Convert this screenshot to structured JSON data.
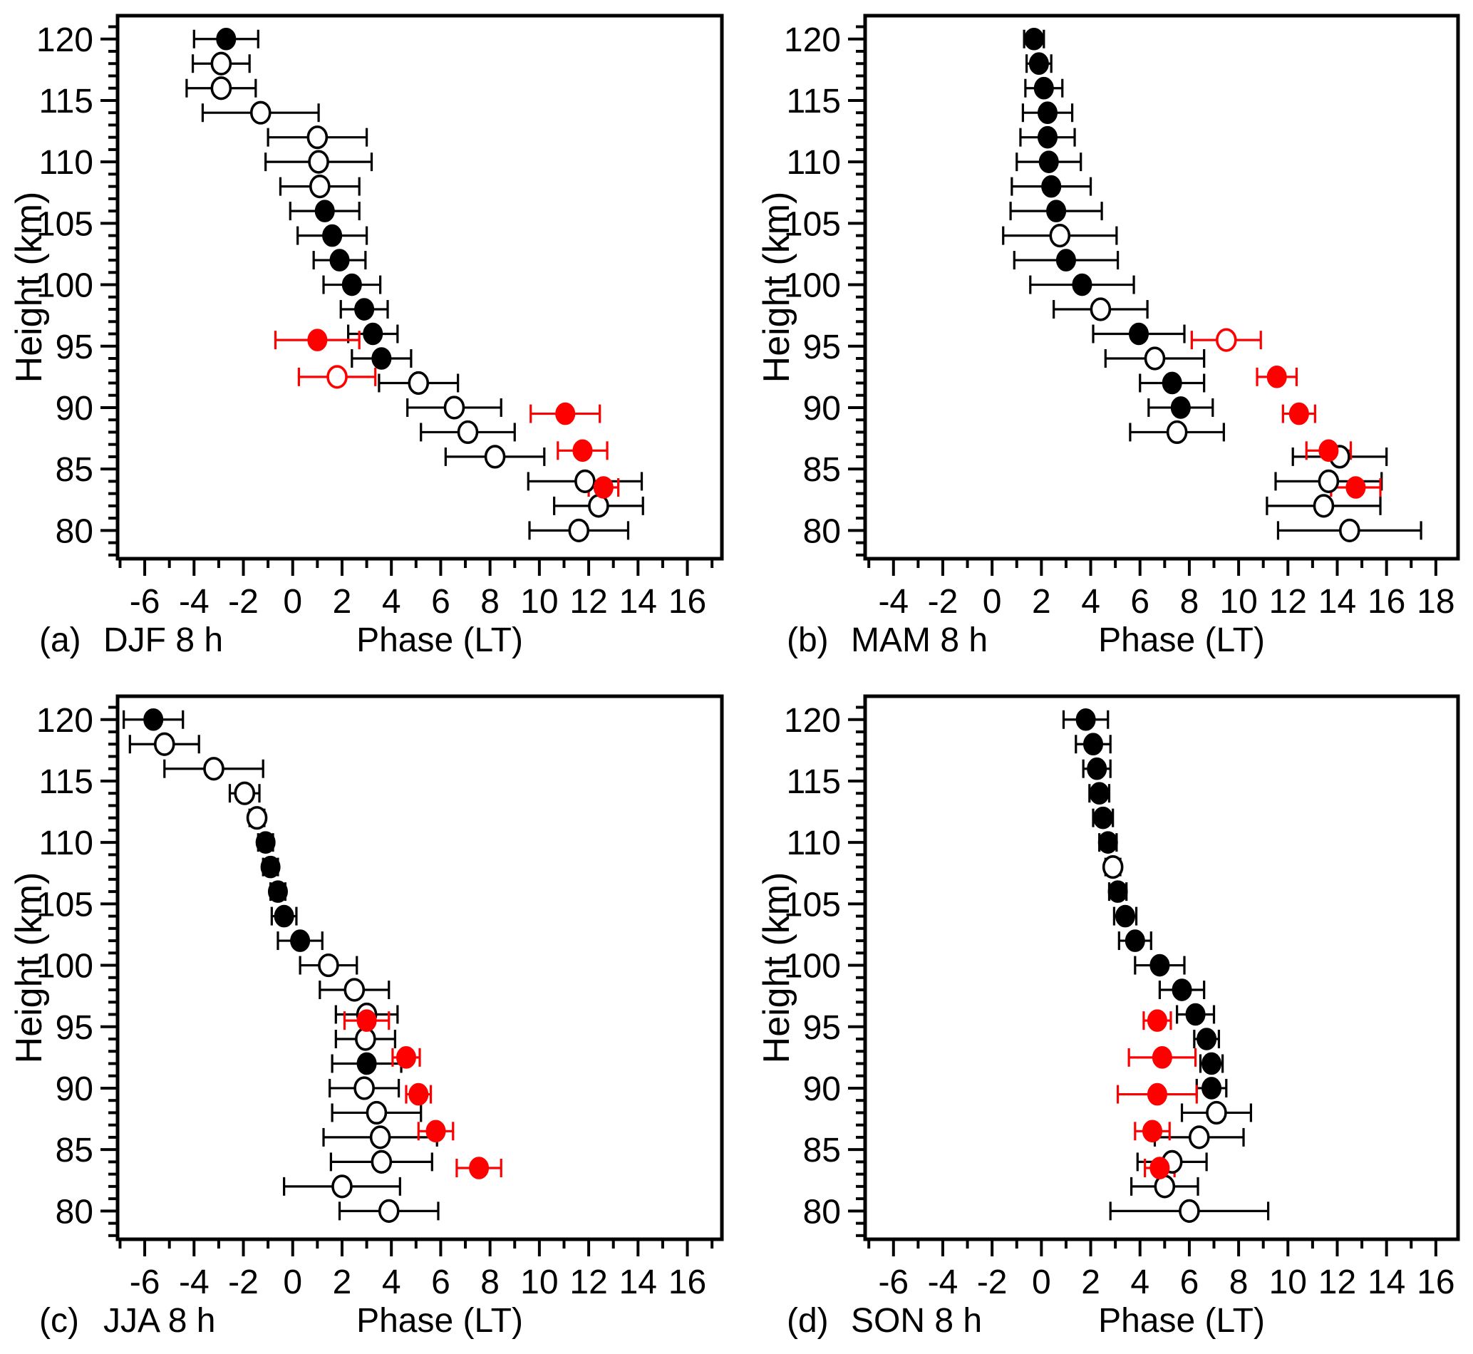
{
  "figure": {
    "background": "#ffffff",
    "ylabel": "Height (km)",
    "xlabel": "Phase (LT)",
    "series_colors": {
      "black": "#000000",
      "red": "#ff0000"
    }
  },
  "chart_data": [
    {
      "type": "scatter",
      "panel_label": "(a)",
      "season_label": "DJF 8 h",
      "xlabel": "Phase (LT)",
      "ylabel": "Height (km)",
      "x_range": [
        -7.1,
        17.4
      ],
      "x_major_ticks": [
        -6,
        -4,
        -2,
        0,
        2,
        4,
        6,
        8,
        10,
        12,
        14,
        16
      ],
      "x_minor_step": 1,
      "y_range": [
        77.7,
        121.9
      ],
      "y_major_ticks": [
        80,
        85,
        90,
        95,
        100,
        105,
        110,
        115,
        120
      ],
      "y_minor_step": 1,
      "grid": "off",
      "legend": "none",
      "series": [
        {
          "name": "black-phase",
          "color": "#000000",
          "columns": [
            "height_km",
            "phase_lt",
            "error_lt",
            "marker"
          ],
          "points": [
            [
              120,
              -2.7,
              1.3,
              "filled"
            ],
            [
              118,
              -2.9,
              1.15,
              "open"
            ],
            [
              116,
              -2.9,
              1.4,
              "open"
            ],
            [
              114,
              -1.3,
              2.35,
              "open"
            ],
            [
              112,
              1.0,
              2.0,
              "open"
            ],
            [
              110,
              1.05,
              2.15,
              "open"
            ],
            [
              108,
              1.1,
              1.6,
              "open"
            ],
            [
              106,
              1.3,
              1.4,
              "filled"
            ],
            [
              104,
              1.6,
              1.4,
              "filled"
            ],
            [
              102,
              1.9,
              1.05,
              "filled"
            ],
            [
              100,
              2.4,
              1.15,
              "filled"
            ],
            [
              98,
              2.9,
              0.95,
              "filled"
            ],
            [
              96,
              3.25,
              1.0,
              "filled"
            ],
            [
              94,
              3.6,
              1.2,
              "filled"
            ],
            [
              92,
              5.1,
              1.6,
              "open"
            ],
            [
              90,
              6.55,
              1.9,
              "open"
            ],
            [
              88,
              7.1,
              1.9,
              "open"
            ],
            [
              86,
              8.2,
              2.0,
              "open"
            ],
            [
              84,
              11.85,
              2.3,
              "open"
            ],
            [
              82,
              12.4,
              1.8,
              "open"
            ],
            [
              80,
              11.6,
              2.0,
              "open"
            ]
          ]
        },
        {
          "name": "red-phase",
          "color": "#ff0000",
          "columns": [
            "height_km",
            "phase_lt",
            "error_lt",
            "marker"
          ],
          "points": [
            [
              95.5,
              1.0,
              1.7,
              "filled"
            ],
            [
              92.5,
              1.8,
              1.55,
              "open"
            ],
            [
              89.5,
              11.05,
              1.4,
              "filled"
            ],
            [
              86.5,
              11.75,
              1.0,
              "filled"
            ],
            [
              83.5,
              12.6,
              0.6,
              "filled"
            ]
          ]
        }
      ]
    },
    {
      "type": "scatter",
      "panel_label": "(b)",
      "season_label": "MAM 8 h",
      "xlabel": "Phase (LT)",
      "ylabel": "Height (km)",
      "x_range": [
        -5.15,
        18.9
      ],
      "x_major_ticks": [
        -4,
        -2,
        0,
        2,
        4,
        6,
        8,
        10,
        12,
        14,
        16,
        18
      ],
      "x_minor_step": 1,
      "y_range": [
        77.7,
        121.9
      ],
      "y_major_ticks": [
        80,
        85,
        90,
        95,
        100,
        105,
        110,
        115,
        120
      ],
      "y_minor_step": 1,
      "grid": "off",
      "legend": "none",
      "series": [
        {
          "name": "black-phase",
          "color": "#000000",
          "columns": [
            "height_km",
            "phase_lt",
            "error_lt",
            "marker"
          ],
          "points": [
            [
              120,
              1.7,
              0.4,
              "filled"
            ],
            [
              118,
              1.9,
              0.5,
              "filled"
            ],
            [
              116,
              2.1,
              0.75,
              "filled"
            ],
            [
              114,
              2.25,
              1.0,
              "filled"
            ],
            [
              112,
              2.25,
              1.1,
              "filled"
            ],
            [
              110,
              2.3,
              1.3,
              "filled"
            ],
            [
              108,
              2.4,
              1.6,
              "filled"
            ],
            [
              106,
              2.6,
              1.85,
              "filled"
            ],
            [
              104,
              2.75,
              2.3,
              "open"
            ],
            [
              102,
              3.0,
              2.1,
              "filled"
            ],
            [
              100,
              3.65,
              2.1,
              "filled"
            ],
            [
              98,
              4.4,
              1.9,
              "open"
            ],
            [
              96,
              5.95,
              1.85,
              "filled"
            ],
            [
              94,
              6.6,
              2.0,
              "open"
            ],
            [
              92,
              7.3,
              1.3,
              "filled"
            ],
            [
              90,
              7.65,
              1.3,
              "filled"
            ],
            [
              88,
              7.5,
              1.9,
              "open"
            ],
            [
              86,
              14.1,
              1.9,
              "open"
            ],
            [
              84,
              13.65,
              2.15,
              "open"
            ],
            [
              82,
              13.45,
              2.3,
              "open"
            ],
            [
              80,
              14.5,
              2.9,
              "open"
            ]
          ]
        },
        {
          "name": "red-phase",
          "color": "#ff0000",
          "columns": [
            "height_km",
            "phase_lt",
            "error_lt",
            "marker"
          ],
          "points": [
            [
              95.5,
              9.5,
              1.4,
              "open"
            ],
            [
              92.5,
              11.55,
              0.8,
              "filled"
            ],
            [
              89.5,
              12.45,
              0.65,
              "filled"
            ],
            [
              86.5,
              13.65,
              0.9,
              "filled"
            ],
            [
              83.5,
              14.75,
              1.0,
              "filled"
            ]
          ]
        }
      ]
    },
    {
      "type": "scatter",
      "panel_label": "(c)",
      "season_label": "JJA 8 h",
      "xlabel": "Phase (LT)",
      "ylabel": "Height (km)",
      "x_range": [
        -7.1,
        17.4
      ],
      "x_major_ticks": [
        -6,
        -4,
        -2,
        0,
        2,
        4,
        6,
        8,
        10,
        12,
        14,
        16
      ],
      "x_minor_step": 1,
      "y_range": [
        77.7,
        121.9
      ],
      "y_major_ticks": [
        80,
        85,
        90,
        95,
        100,
        105,
        110,
        115,
        120
      ],
      "y_minor_step": 1,
      "grid": "off",
      "legend": "none",
      "series": [
        {
          "name": "black-phase",
          "color": "#000000",
          "columns": [
            "height_km",
            "phase_lt",
            "error_lt",
            "marker"
          ],
          "points": [
            [
              120,
              -5.65,
              1.2,
              "filled"
            ],
            [
              118,
              -5.2,
              1.4,
              "open"
            ],
            [
              116,
              -3.2,
              2.0,
              "open"
            ],
            [
              114,
              -1.95,
              0.6,
              "open"
            ],
            [
              112,
              -1.45,
              0.3,
              "open"
            ],
            [
              110,
              -1.1,
              0.3,
              "filled"
            ],
            [
              108,
              -0.9,
              0.3,
              "filled"
            ],
            [
              106,
              -0.6,
              0.3,
              "filled"
            ],
            [
              104,
              -0.35,
              0.5,
              "filled"
            ],
            [
              102,
              0.3,
              0.9,
              "filled"
            ],
            [
              100,
              1.45,
              1.15,
              "open"
            ],
            [
              98,
              2.5,
              1.4,
              "open"
            ],
            [
              96,
              3.0,
              1.25,
              "open"
            ],
            [
              94,
              2.95,
              1.2,
              "open"
            ],
            [
              92,
              3.0,
              1.4,
              "filled"
            ],
            [
              90,
              2.9,
              1.4,
              "open"
            ],
            [
              88,
              3.4,
              1.8,
              "open"
            ],
            [
              86,
              3.55,
              2.3,
              "open"
            ],
            [
              84,
              3.6,
              2.05,
              "open"
            ],
            [
              82,
              2.0,
              2.35,
              "open"
            ],
            [
              80,
              3.9,
              2.0,
              "open"
            ]
          ]
        },
        {
          "name": "red-phase",
          "color": "#ff0000",
          "columns": [
            "height_km",
            "phase_lt",
            "error_lt",
            "marker"
          ],
          "points": [
            [
              95.5,
              3.0,
              0.9,
              "filled"
            ],
            [
              92.5,
              4.6,
              0.55,
              "filled"
            ],
            [
              89.5,
              5.1,
              0.5,
              "filled"
            ],
            [
              86.5,
              5.8,
              0.7,
              "filled"
            ],
            [
              83.5,
              7.55,
              0.9,
              "filled"
            ]
          ]
        }
      ]
    },
    {
      "type": "scatter",
      "panel_label": "(d)",
      "season_label": "SON 8 h",
      "xlabel": "Phase (LT)",
      "ylabel": "Height (km)",
      "x_range": [
        -7.15,
        16.9
      ],
      "x_major_ticks": [
        -6,
        -4,
        -2,
        0,
        2,
        4,
        6,
        8,
        10,
        12,
        14,
        16
      ],
      "x_minor_step": 1,
      "y_range": [
        77.7,
        121.9
      ],
      "y_major_ticks": [
        80,
        85,
        90,
        95,
        100,
        105,
        110,
        115,
        120
      ],
      "y_minor_step": 1,
      "grid": "off",
      "legend": "none",
      "series": [
        {
          "name": "black-phase",
          "color": "#000000",
          "columns": [
            "height_km",
            "phase_lt",
            "error_lt",
            "marker"
          ],
          "points": [
            [
              120,
              1.8,
              0.9,
              "filled"
            ],
            [
              118,
              2.1,
              0.7,
              "filled"
            ],
            [
              116,
              2.25,
              0.55,
              "filled"
            ],
            [
              114,
              2.35,
              0.4,
              "filled"
            ],
            [
              112,
              2.5,
              0.4,
              "filled"
            ],
            [
              110,
              2.7,
              0.35,
              "filled"
            ],
            [
              108,
              2.9,
              0.3,
              "open"
            ],
            [
              106,
              3.1,
              0.35,
              "filled"
            ],
            [
              104,
              3.4,
              0.45,
              "filled"
            ],
            [
              102,
              3.8,
              0.65,
              "filled"
            ],
            [
              100,
              4.8,
              1.0,
              "filled"
            ],
            [
              98,
              5.7,
              0.9,
              "filled"
            ],
            [
              96,
              6.25,
              0.75,
              "filled"
            ],
            [
              94,
              6.7,
              0.5,
              "filled"
            ],
            [
              92,
              6.9,
              0.45,
              "filled"
            ],
            [
              90,
              6.9,
              0.6,
              "filled"
            ],
            [
              88,
              7.1,
              1.4,
              "open"
            ],
            [
              86,
              6.4,
              1.8,
              "open"
            ],
            [
              84,
              5.3,
              1.4,
              "open"
            ],
            [
              82,
              5.0,
              1.35,
              "open"
            ],
            [
              80,
              6.0,
              3.2,
              "open"
            ]
          ]
        },
        {
          "name": "red-phase",
          "color": "#ff0000",
          "columns": [
            "height_km",
            "phase_lt",
            "error_lt",
            "marker"
          ],
          "points": [
            [
              95.5,
              4.7,
              0.55,
              "filled"
            ],
            [
              92.5,
              4.9,
              1.35,
              "filled"
            ],
            [
              89.5,
              4.7,
              1.6,
              "filled"
            ],
            [
              86.5,
              4.5,
              0.7,
              "filled"
            ],
            [
              83.5,
              4.8,
              0.6,
              "filled"
            ]
          ]
        }
      ]
    }
  ]
}
